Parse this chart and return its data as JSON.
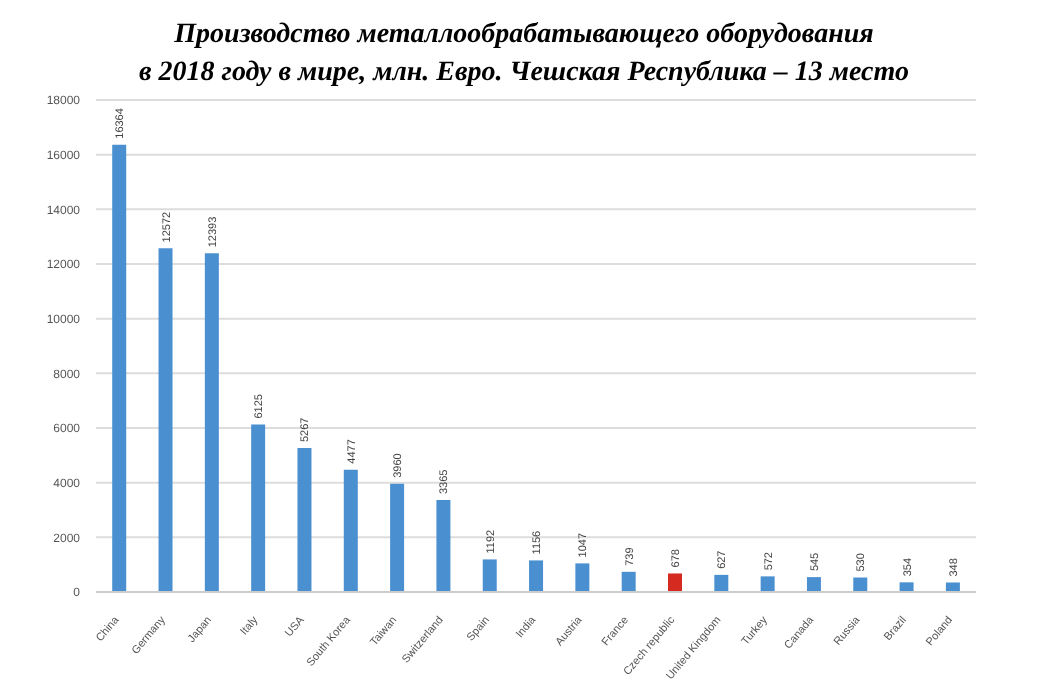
{
  "chart_data": {
    "type": "bar",
    "title": "Производство металлообрабатывающего оборудования\nв 2018 году в мире, млн. Евро. Чешская Республика – 13 место",
    "categories": [
      "China",
      "Germany",
      "Japan",
      "Italy",
      "USA",
      "South Korea",
      "Taiwan",
      "Switzerland",
      "Spain",
      "India",
      "Austria",
      "France",
      "Czech republic",
      "United Kingdom",
      "Turkey",
      "Canada",
      "Russia",
      "Brazil",
      "Poland"
    ],
    "values": [
      16364,
      12572,
      12393,
      6125,
      5267,
      4477,
      3960,
      3365,
      1192,
      1156,
      1047,
      739,
      678,
      627,
      572,
      545,
      530,
      354,
      348
    ],
    "colors": [
      "#4a90d0",
      "#4a90d0",
      "#4a90d0",
      "#4a90d0",
      "#4a90d0",
      "#4a90d0",
      "#4a90d0",
      "#4a90d0",
      "#4a90d0",
      "#4a90d0",
      "#4a90d0",
      "#4a90d0",
      "#d42a20",
      "#4a90d0",
      "#4a90d0",
      "#4a90d0",
      "#4a90d0",
      "#4a90d0",
      "#4a90d0"
    ],
    "ylim": [
      0,
      18000
    ],
    "yticks": [
      0,
      2000,
      4000,
      6000,
      8000,
      10000,
      12000,
      14000,
      16000,
      18000
    ],
    "grid": "y",
    "data_labels": true
  }
}
